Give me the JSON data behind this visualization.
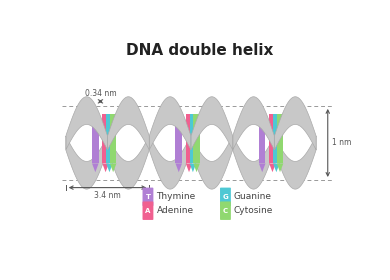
{
  "title": "DNA double helix",
  "title_fontsize": 11,
  "background_color": "#ffffff",
  "thymine_color": "#b07fd4",
  "adenine_color": "#f06090",
  "guanine_color": "#4ec8d4",
  "cytosine_color": "#90d870",
  "strand_color_light": "#d8d8d8",
  "strand_color_dark": "#b8b8b8",
  "dim_034": "0.34 nm",
  "dim_34": "3.4 nm",
  "dim_1nm": "1 nm",
  "legend_items": [
    {
      "label": "Thymine",
      "color": "#b07fd4",
      "letter": "T"
    },
    {
      "label": "Guanine",
      "color": "#4ec8d4",
      "letter": "G"
    },
    {
      "label": "Adenine",
      "color": "#f06090",
      "letter": "A"
    },
    {
      "label": "Cytosine",
      "color": "#90d870",
      "letter": "C"
    }
  ]
}
